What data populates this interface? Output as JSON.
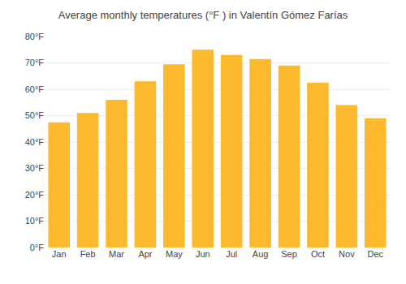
{
  "chart_data": {
    "type": "bar",
    "title": "Average monthly temperatures (°F ) in Valentín Gómez Farías",
    "categories": [
      "Jan",
      "Feb",
      "Mar",
      "Apr",
      "May",
      "Jun",
      "Jul",
      "Aug",
      "Sep",
      "Oct",
      "Nov",
      "Dec"
    ],
    "values": [
      47.5,
      51.0,
      56.0,
      63.0,
      69.5,
      75.0,
      73.0,
      71.5,
      69.0,
      62.5,
      54.0,
      49.0
    ],
    "color": "#FDB92E",
    "ylim": [
      0,
      80
    ],
    "yticks": [
      {
        "value": 0,
        "label": "0°F"
      },
      {
        "value": 10,
        "label": "10°F"
      },
      {
        "value": 20,
        "label": "20°F"
      },
      {
        "value": 30,
        "label": "30°F"
      },
      {
        "value": 40,
        "label": "40°F"
      },
      {
        "value": 50,
        "label": "50°F"
      },
      {
        "value": 60,
        "label": "60°F"
      },
      {
        "value": 70,
        "label": "70°F"
      },
      {
        "value": 80,
        "label": "80°F"
      }
    ],
    "grid": true
  }
}
